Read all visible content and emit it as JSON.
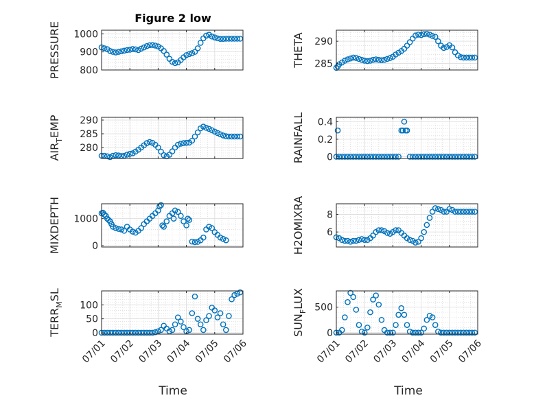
{
  "figure": {
    "title": "Figure 2 low",
    "marker_color": "#0072bd",
    "xlabel": "Time"
  },
  "chart_data": [
    {
      "type": "scatter",
      "name": "pressure",
      "ylabel": "PRESSURE",
      "ylim": [
        800,
        1020
      ],
      "yticks": [
        800,
        900,
        1000
      ],
      "ytick_labels": [
        "800",
        "900",
        "1000"
      ],
      "xlim": [
        0,
        5
      ],
      "xticks": [
        0,
        1,
        2,
        3,
        4,
        5
      ],
      "xtick_labels": [
        "07/01",
        "07/02",
        "07/03",
        "07/04",
        "07/05",
        "07/06"
      ],
      "show_xtick_labels": false,
      "grid": true,
      "minor_grid": true,
      "t": [
        0.0,
        0.1,
        0.2,
        0.3,
        0.4,
        0.5,
        0.6,
        0.7,
        0.8,
        0.9,
        1.0,
        1.1,
        1.2,
        1.3,
        1.4,
        1.5,
        1.6,
        1.7,
        1.8,
        1.9,
        2.0,
        2.1,
        2.2,
        2.3,
        2.4,
        2.5,
        2.6,
        2.7,
        2.8,
        2.9,
        3.0,
        3.1,
        3.2,
        3.3,
        3.4,
        3.5,
        3.6,
        3.7,
        3.8,
        3.9,
        4.0,
        4.1,
        4.2,
        4.3,
        4.4,
        4.5,
        4.6,
        4.7,
        4.8,
        4.9
      ],
      "values": [
        925,
        920,
        915,
        905,
        900,
        897,
        900,
        903,
        907,
        910,
        912,
        916,
        914,
        910,
        918,
        925,
        932,
        937,
        938,
        935,
        930,
        920,
        905,
        885,
        862,
        845,
        838,
        842,
        855,
        870,
        882,
        888,
        893,
        900,
        920,
        950,
        975,
        990,
        995,
        985,
        980,
        975,
        972,
        972,
        973,
        973,
        973,
        973,
        973,
        973
      ]
    },
    {
      "type": "scatter",
      "name": "theta",
      "ylabel": "THETA",
      "ylim": [
        283.5,
        292.5
      ],
      "yticks": [
        285,
        290
      ],
      "ytick_labels": [
        "285",
        "290"
      ],
      "xlim": [
        0,
        5
      ],
      "xticks": [
        0,
        1,
        2,
        3,
        4,
        5
      ],
      "xtick_labels": [
        "07/01",
        "07/02",
        "07/03",
        "07/04",
        "07/05",
        "07/06"
      ],
      "show_xtick_labels": false,
      "grid": true,
      "minor_grid": true,
      "t": [
        0.0,
        0.05,
        0.1,
        0.2,
        0.3,
        0.4,
        0.5,
        0.6,
        0.7,
        0.8,
        0.9,
        1.0,
        1.1,
        1.2,
        1.3,
        1.4,
        1.5,
        1.6,
        1.7,
        1.8,
        1.9,
        2.0,
        2.1,
        2.2,
        2.3,
        2.4,
        2.5,
        2.6,
        2.7,
        2.8,
        2.9,
        3.0,
        3.1,
        3.2,
        3.3,
        3.4,
        3.5,
        3.6,
        3.7,
        3.8,
        3.9,
        4.0,
        4.1,
        4.2,
        4.3,
        4.4,
        4.5,
        4.6,
        4.7,
        4.8,
        4.9
      ],
      "values": [
        284.0,
        284.3,
        284.8,
        285.2,
        285.6,
        285.9,
        286.1,
        286.3,
        286.2,
        286.0,
        285.8,
        285.6,
        285.5,
        285.6,
        285.8,
        285.9,
        285.8,
        285.7,
        285.8,
        286.0,
        286.2,
        286.5,
        287.0,
        287.4,
        287.8,
        288.3,
        289.0,
        289.8,
        290.6,
        291.3,
        291.5,
        291.4,
        291.6,
        291.7,
        291.5,
        291.2,
        291.0,
        290.0,
        289.0,
        288.5,
        288.7,
        289.1,
        288.6,
        287.5,
        286.8,
        286.4,
        286.3,
        286.3,
        286.3,
        286.3,
        286.3
      ]
    },
    {
      "type": "scatter",
      "name": "air_temp",
      "ylabel": "AIR_TEMP",
      "ylim": [
        276,
        291
      ],
      "yticks": [
        280,
        285,
        290
      ],
      "ytick_labels": [
        "280",
        "285",
        "290"
      ],
      "xlim": [
        0,
        5
      ],
      "xticks": [
        0,
        1,
        2,
        3,
        4,
        5
      ],
      "xtick_labels": [
        "07/01",
        "07/02",
        "07/03",
        "07/04",
        "07/05",
        "07/06"
      ],
      "show_xtick_labels": false,
      "grid": true,
      "minor_grid": true,
      "t": [
        0.0,
        0.1,
        0.2,
        0.3,
        0.4,
        0.5,
        0.6,
        0.7,
        0.8,
        0.9,
        1.0,
        1.1,
        1.2,
        1.3,
        1.4,
        1.5,
        1.6,
        1.7,
        1.8,
        1.9,
        2.0,
        2.1,
        2.2,
        2.3,
        2.4,
        2.5,
        2.6,
        2.7,
        2.8,
        2.9,
        3.0,
        3.1,
        3.2,
        3.3,
        3.4,
        3.5,
        3.6,
        3.7,
        3.8,
        3.9,
        4.0,
        4.1,
        4.2,
        4.3,
        4.4,
        4.5,
        4.6,
        4.7,
        4.8,
        4.9
      ],
      "values": [
        277.0,
        277.0,
        276.8,
        276.5,
        277.0,
        277.2,
        277.1,
        276.9,
        277.0,
        277.4,
        277.7,
        277.9,
        278.5,
        279.2,
        280.0,
        280.8,
        281.6,
        282.0,
        281.7,
        281.0,
        280.0,
        278.5,
        277.2,
        276.8,
        277.4,
        278.6,
        280.0,
        281.0,
        281.4,
        281.6,
        281.7,
        281.8,
        282.5,
        284.0,
        285.5,
        287.0,
        287.6,
        287.2,
        286.8,
        286.3,
        285.8,
        285.3,
        284.8,
        284.4,
        284.1,
        284.0,
        284.0,
        284.0,
        284.0,
        284.0
      ]
    },
    {
      "type": "scatter",
      "name": "rainfall",
      "ylabel": "RAINFALL",
      "ylim": [
        -0.02,
        0.45
      ],
      "yticks": [
        0,
        0.2,
        0.4
      ],
      "ytick_labels": [
        "0",
        "0.2",
        "0.4"
      ],
      "xlim": [
        0,
        5
      ],
      "xticks": [
        0,
        1,
        2,
        3,
        4,
        5
      ],
      "xtick_labels": [
        "07/01",
        "07/02",
        "07/03",
        "07/04",
        "07/05",
        "07/06"
      ],
      "show_xtick_labels": false,
      "grid": true,
      "minor_grid": true,
      "t": [
        0.0,
        0.05,
        0.1,
        0.2,
        0.3,
        0.4,
        0.5,
        0.6,
        0.7,
        0.8,
        0.9,
        1.0,
        1.1,
        1.2,
        1.3,
        1.4,
        1.5,
        1.6,
        1.7,
        1.8,
        1.9,
        2.0,
        2.1,
        2.2,
        2.3,
        2.35,
        2.4,
        2.45,
        2.5,
        2.6,
        2.7,
        2.8,
        2.9,
        3.0,
        3.1,
        3.2,
        3.3,
        3.4,
        3.5,
        3.6,
        3.7,
        3.8,
        3.9,
        4.0,
        4.1,
        4.2,
        4.3,
        4.4,
        4.5,
        4.6,
        4.7,
        4.8,
        4.9
      ],
      "values": [
        0,
        0.3,
        0,
        0,
        0,
        0,
        0,
        0,
        0,
        0,
        0,
        0,
        0,
        0,
        0,
        0,
        0,
        0,
        0,
        0,
        0,
        0,
        0,
        0,
        0.3,
        0.3,
        0.4,
        0.3,
        0.3,
        0,
        0,
        0,
        0,
        0,
        0,
        0,
        0,
        0,
        0,
        0,
        0,
        0,
        0,
        0,
        0,
        0,
        0,
        0,
        0,
        0,
        0,
        0,
        0
      ]
    },
    {
      "type": "scatter",
      "name": "mixdepth",
      "ylabel": "MIXDEPTH",
      "ylim": [
        -50,
        1550
      ],
      "yticks": [
        0,
        1000
      ],
      "ytick_labels": [
        "0",
        "1000"
      ],
      "xlim": [
        0,
        5
      ],
      "xticks": [
        0,
        1,
        2,
        3,
        4,
        5
      ],
      "xtick_labels": [
        "07/01",
        "07/02",
        "07/03",
        "07/04",
        "07/05",
        "07/06"
      ],
      "show_xtick_labels": false,
      "grid": true,
      "minor_grid": true,
      "t": [
        0.0,
        0.05,
        0.1,
        0.15,
        0.2,
        0.25,
        0.3,
        0.35,
        0.4,
        0.5,
        0.6,
        0.7,
        0.8,
        0.9,
        1.0,
        1.1,
        1.2,
        1.3,
        1.4,
        1.5,
        1.6,
        1.7,
        1.8,
        1.9,
        2.0,
        2.05,
        2.1,
        2.15,
        2.2,
        2.3,
        2.4,
        2.5,
        2.55,
        2.6,
        2.7,
        2.8,
        2.9,
        3.0,
        3.05,
        3.1,
        3.2,
        3.3,
        3.4,
        3.5,
        3.6,
        3.7,
        3.8,
        3.9,
        4.0,
        4.1,
        4.2,
        4.3,
        4.4
      ],
      "values": [
        1200,
        1220,
        1150,
        1100,
        1000,
        950,
        900,
        800,
        700,
        650,
        620,
        600,
        550,
        700,
        600,
        520,
        480,
        550,
        650,
        800,
        900,
        1000,
        1100,
        1200,
        1300,
        1450,
        1500,
        750,
        700,
        900,
        1100,
        1200,
        1000,
        1300,
        1250,
        1100,
        900,
        750,
        1000,
        950,
        150,
        130,
        140,
        200,
        300,
        600,
        700,
        650,
        500,
        400,
        300,
        250,
        200
      ]
    },
    {
      "type": "scatter",
      "name": "h2omixra",
      "ylabel": "H2OMIXRA",
      "ylim": [
        4.3,
        9.2
      ],
      "yticks": [
        6,
        8
      ],
      "ytick_labels": [
        "6",
        "8"
      ],
      "xlim": [
        0,
        5
      ],
      "xticks": [
        0,
        1,
        2,
        3,
        4,
        5
      ],
      "xtick_labels": [
        "07/01",
        "07/02",
        "07/03",
        "07/04",
        "07/05",
        "07/06"
      ],
      "show_xtick_labels": false,
      "grid": true,
      "minor_grid": true,
      "t": [
        0.0,
        0.1,
        0.2,
        0.3,
        0.4,
        0.5,
        0.6,
        0.7,
        0.8,
        0.9,
        1.0,
        1.1,
        1.2,
        1.3,
        1.4,
        1.5,
        1.6,
        1.7,
        1.8,
        1.9,
        2.0,
        2.1,
        2.2,
        2.3,
        2.4,
        2.5,
        2.6,
        2.7,
        2.8,
        2.9,
        3.0,
        3.1,
        3.2,
        3.3,
        3.4,
        3.5,
        3.6,
        3.7,
        3.8,
        3.9,
        4.0,
        4.1,
        4.2,
        4.3,
        4.4,
        4.5,
        4.6,
        4.7,
        4.8,
        4.9
      ],
      "values": [
        5.4,
        5.3,
        5.1,
        5.0,
        5.0,
        4.9,
        5.0,
        5.0,
        5.1,
        5.2,
        5.1,
        5.1,
        5.3,
        5.6,
        6.0,
        6.2,
        6.2,
        6.1,
        5.9,
        5.8,
        6.0,
        6.2,
        6.2,
        5.9,
        5.6,
        5.3,
        5.1,
        5.0,
        4.8,
        4.9,
        5.3,
        6.0,
        6.8,
        7.6,
        8.3,
        8.7,
        8.6,
        8.5,
        8.3,
        8.3,
        8.6,
        8.5,
        8.3,
        8.3,
        8.3,
        8.3,
        8.3,
        8.3,
        8.3,
        8.3
      ]
    },
    {
      "type": "scatter",
      "name": "terr_msl",
      "ylabel": "TERR_MSL",
      "ylim": [
        -5,
        150
      ],
      "yticks": [
        0,
        50,
        100
      ],
      "ytick_labels": [
        "0",
        "50",
        "100"
      ],
      "xlim": [
        0,
        5
      ],
      "xticks": [
        0,
        1,
        2,
        3,
        4,
        5
      ],
      "xtick_labels": [
        "07/01",
        "07/02",
        "07/03",
        "07/04",
        "07/05",
        "07/06"
      ],
      "show_xtick_labels": true,
      "grid": true,
      "minor_grid": true,
      "t": [
        0.0,
        0.1,
        0.2,
        0.3,
        0.4,
        0.5,
        0.6,
        0.7,
        0.8,
        0.9,
        1.0,
        1.1,
        1.2,
        1.3,
        1.4,
        1.5,
        1.6,
        1.7,
        1.8,
        1.9,
        2.0,
        2.1,
        2.2,
        2.3,
        2.4,
        2.5,
        2.6,
        2.7,
        2.8,
        2.9,
        3.0,
        3.1,
        3.2,
        3.3,
        3.4,
        3.5,
        3.6,
        3.7,
        3.8,
        3.9,
        4.0,
        4.1,
        4.2,
        4.3,
        4.4,
        4.5,
        4.6,
        4.7,
        4.8,
        4.9
      ],
      "values": [
        0,
        0,
        0,
        0,
        0,
        0,
        0,
        0,
        0,
        0,
        0,
        0,
        0,
        0,
        0,
        0,
        0,
        0,
        0,
        2,
        5,
        10,
        25,
        15,
        5,
        10,
        30,
        55,
        40,
        20,
        5,
        10,
        70,
        130,
        50,
        30,
        10,
        45,
        60,
        90,
        80,
        55,
        70,
        30,
        10,
        60,
        120,
        135,
        140,
        145
      ]
    },
    {
      "type": "scatter",
      "name": "sun_flux",
      "ylabel": "SUN_FLUX",
      "ylim": [
        -30,
        820
      ],
      "yticks": [
        0,
        500
      ],
      "ytick_labels": [
        "0",
        "500"
      ],
      "xlim": [
        0,
        5
      ],
      "xticks": [
        0,
        1,
        2,
        3,
        4,
        5
      ],
      "xtick_labels": [
        "07/01",
        "07/02",
        "07/03",
        "07/04",
        "07/05",
        "07/06"
      ],
      "show_xtick_labels": true,
      "grid": true,
      "minor_grid": true,
      "t": [
        0.0,
        0.1,
        0.2,
        0.3,
        0.4,
        0.5,
        0.6,
        0.7,
        0.8,
        0.9,
        1.0,
        1.1,
        1.2,
        1.3,
        1.4,
        1.5,
        1.6,
        1.7,
        1.8,
        1.9,
        2.0,
        2.1,
        2.2,
        2.3,
        2.4,
        2.5,
        2.6,
        2.7,
        2.8,
        2.9,
        3.0,
        3.1,
        3.2,
        3.3,
        3.4,
        3.5,
        3.6,
        3.7,
        3.8,
        3.9,
        4.0,
        4.1,
        4.2,
        4.3,
        4.4,
        4.5,
        4.6,
        4.7,
        4.8,
        4.9
      ],
      "values": [
        0,
        0,
        50,
        300,
        600,
        780,
        700,
        450,
        150,
        20,
        0,
        100,
        400,
        650,
        730,
        550,
        250,
        50,
        0,
        0,
        0,
        150,
        350,
        480,
        350,
        150,
        20,
        0,
        0,
        0,
        0,
        80,
        250,
        330,
        300,
        150,
        20,
        0,
        0,
        0,
        0,
        0,
        0,
        0,
        0,
        0,
        0,
        0,
        0,
        0
      ]
    }
  ]
}
